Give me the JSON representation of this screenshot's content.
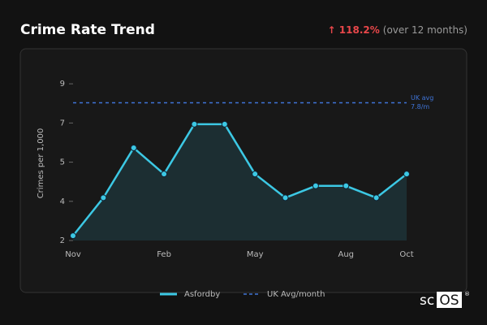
{
  "header": {
    "title": "Crime Rate Trend",
    "change_label": "↑ 118.2%",
    "change_note": "(over 12 months)"
  },
  "chart_data": {
    "type": "line",
    "y_label": "Crimes per 1,000",
    "categories": [
      "Nov",
      null,
      null,
      "Feb",
      null,
      null,
      "May",
      null,
      null,
      "Aug",
      null,
      "Oct"
    ],
    "series": [
      {
        "name": "Asfordby",
        "color": "#3cc8e4",
        "values": [
          2.2,
          3.8,
          5.9,
          4.8,
          6.9,
          6.9,
          4.8,
          3.8,
          4.3,
          4.3,
          3.8,
          4.8
        ]
      }
    ],
    "reference": {
      "name": "UK Avg/month",
      "value": 7.8,
      "color": "#3f74d8",
      "annotation": [
        "UK avg",
        "7.8/m"
      ]
    },
    "ylim": [
      2,
      9.05
    ],
    "yticks": [
      2,
      {
        "value": 3.65,
        "label": "4"
      },
      {
        "value": 5.3,
        "label": "5"
      },
      {
        "value": 6.95,
        "label": "7"
      },
      {
        "value": 8.6,
        "label": "9"
      }
    ],
    "grid": false,
    "legend": "bottom"
  },
  "logo": {
    "left": "sc",
    "boxed": "OS",
    "mark": "®"
  }
}
